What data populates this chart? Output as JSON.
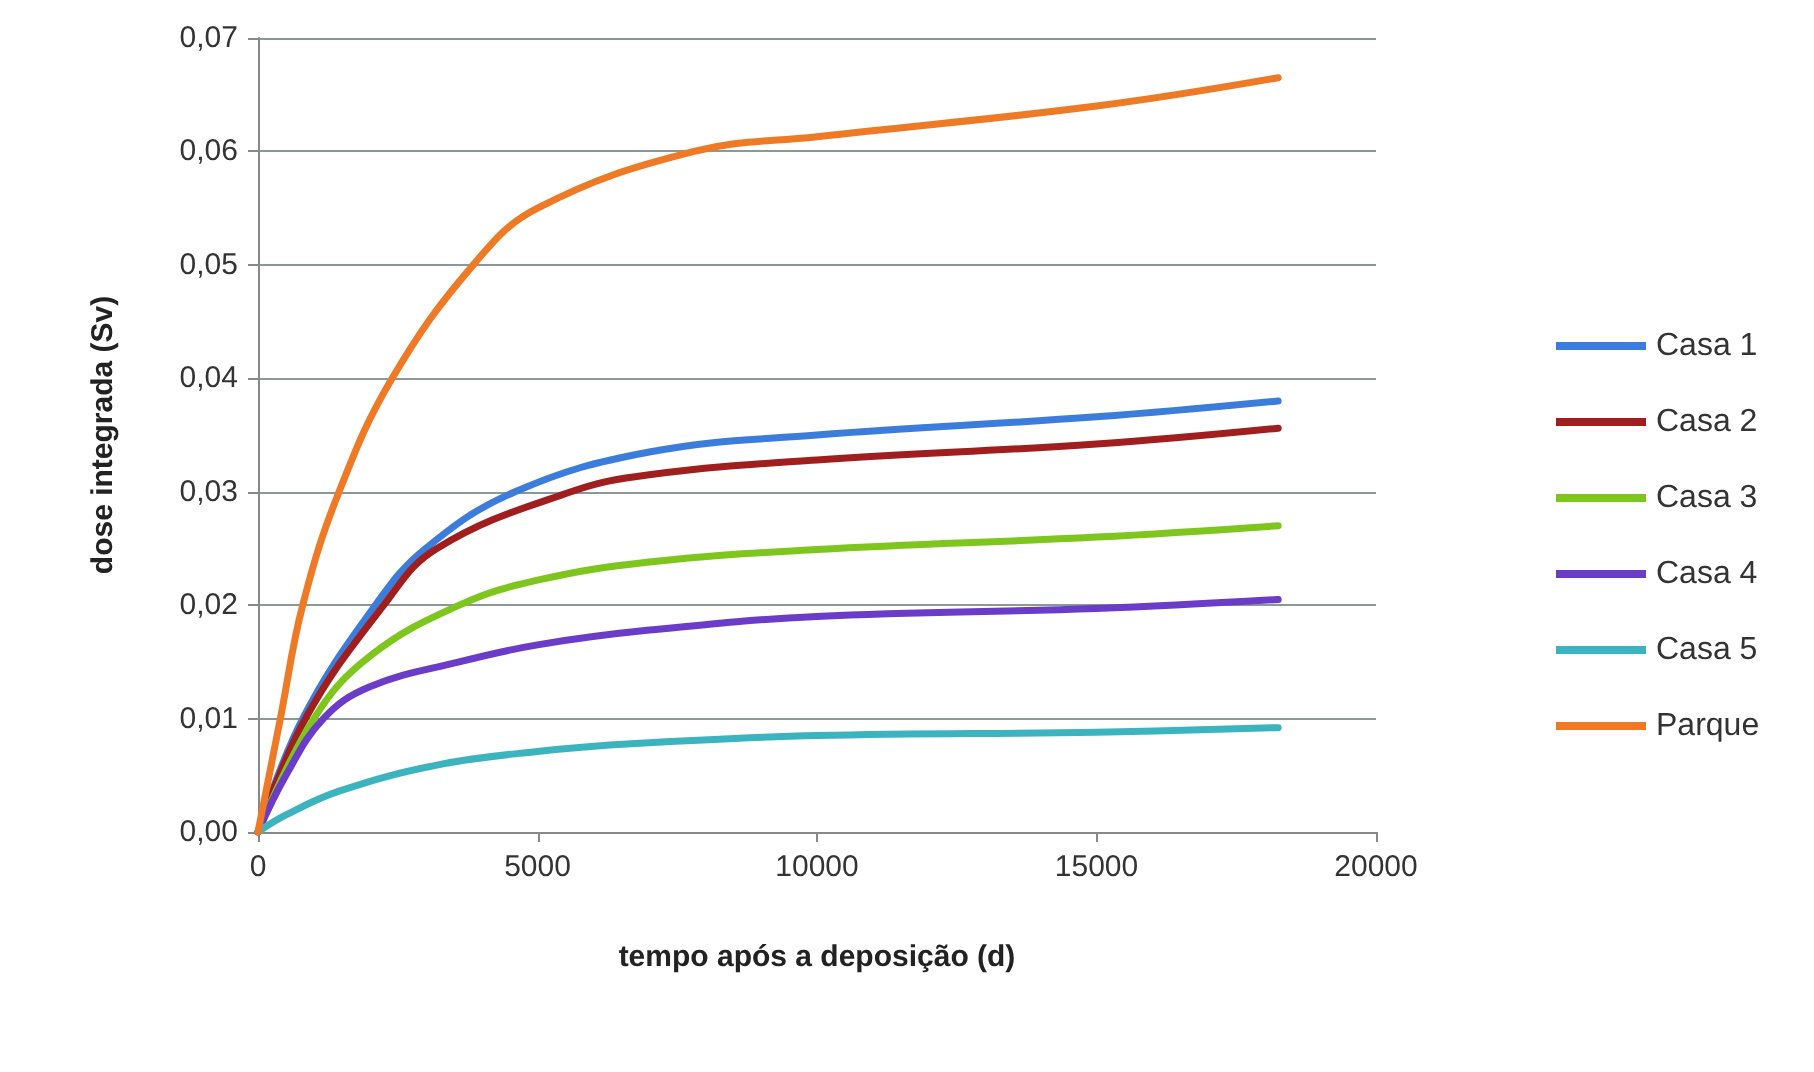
{
  "chart_data": {
    "type": "line",
    "xlabel": "tempo após a deposição (d)",
    "ylabel": "dose integrada (Sv)",
    "xlim": [
      0,
      20000
    ],
    "xticks": [
      0,
      5000,
      10000,
      15000,
      20000
    ],
    "ylim": [
      0,
      0.07
    ],
    "yticks": [
      {
        "value": 0,
        "label": "0,00"
      },
      {
        "value": 0.01,
        "label": "0,01"
      },
      {
        "value": 0.02,
        "label": "0,02"
      },
      {
        "value": 0.03,
        "label": "0,03"
      },
      {
        "value": 0.04,
        "label": "0,04"
      },
      {
        "value": 0.05,
        "label": "0,05"
      },
      {
        "value": 0.06,
        "label": "0,06"
      },
      {
        "value": 0.07,
        "label": "0,07"
      }
    ],
    "grid": "y",
    "legend": "right",
    "marker": "none",
    "line_style": "solid",
    "series": [
      {
        "name": "Casa 1",
        "color": "#3c7ddc",
        "x": [
          0,
          800,
          2100,
          3000,
          4600,
          7000,
          10000,
          15000,
          18250
        ],
        "values": [
          0,
          0.01,
          0.02,
          0.025,
          0.03,
          0.0335,
          0.035,
          0.0366,
          0.038
        ]
      },
      {
        "name": "Casa 2",
        "color": "#a01e1e",
        "x": [
          0,
          850,
          2250,
          3200,
          5600,
          7000,
          10000,
          15000,
          18250
        ],
        "values": [
          0,
          0.01,
          0.02,
          0.025,
          0.03,
          0.0315,
          0.0328,
          0.0342,
          0.0356
        ]
      },
      {
        "name": "Casa 3",
        "color": "#7ec61e",
        "x": [
          0,
          1000,
          2000,
          3600,
          5000,
          7000,
          10000,
          15000,
          18250
        ],
        "values": [
          0,
          0.01,
          0.0155,
          0.02,
          0.0222,
          0.0238,
          0.0249,
          0.026,
          0.027
        ]
      },
      {
        "name": "Casa 4",
        "color": "#6a3cc8",
        "x": [
          0,
          500,
          1170,
          2000,
          3600,
          5000,
          7000,
          10000,
          15000,
          18250
        ],
        "values": [
          0,
          0.005,
          0.01,
          0.0128,
          0.015,
          0.0165,
          0.0178,
          0.019,
          0.0197,
          0.0205
        ]
      },
      {
        "name": "Casa 5",
        "color": "#3cb4c0",
        "x": [
          0,
          500,
          1450,
          3200,
          5000,
          6750,
          10000,
          15000,
          18250
        ],
        "values": [
          0,
          0.0015,
          0.0036,
          0.0059,
          0.0071,
          0.0078,
          0.0085,
          0.0088,
          0.0092
        ]
      },
      {
        "name": "Parque",
        "color": "#ee7a26",
        "x": [
          0,
          400,
          800,
          1450,
          2400,
          3850,
          5000,
          7800,
          10000,
          15000,
          18250
        ],
        "values": [
          0,
          0.01,
          0.02,
          0.03,
          0.04,
          0.05,
          0.055,
          0.06,
          0.0613,
          0.064,
          0.0665
        ]
      }
    ]
  }
}
